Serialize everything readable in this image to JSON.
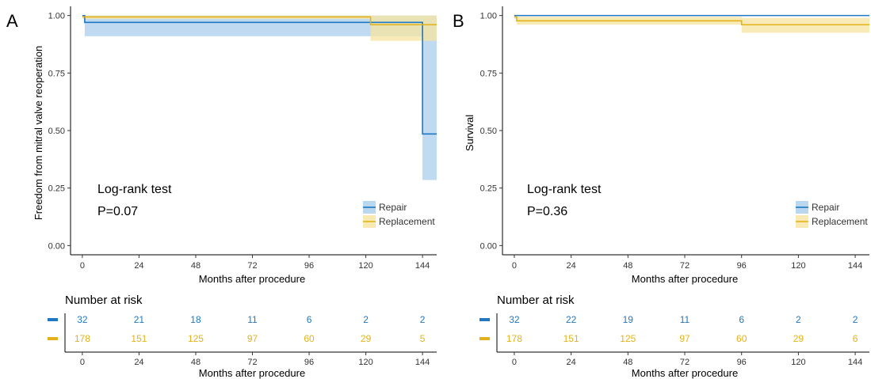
{
  "figure": {
    "panels": [
      {
        "letter": "A",
        "ylabel": "Freedom from mitral valve reoperation",
        "xlabel": "Months after procedure",
        "annotation_line1": "Log-rank test",
        "annotation_line2": "P=0.07",
        "risk_title": "Number at risk",
        "risk_xlabel": "Months after procedure"
      },
      {
        "letter": "B",
        "ylabel": "Survival",
        "xlabel": "Months after procedure",
        "annotation_line1": "Log-rank test",
        "annotation_line2": "P=0.36",
        "risk_title": "Number at risk",
        "risk_xlabel": "Months after procedure"
      }
    ]
  },
  "colors": {
    "repair": "#1f78c1",
    "repair_band": "#a9cdec",
    "replacement": "#e3b21a",
    "replacement_band": "#f7e4a0"
  },
  "chart_data": [
    {
      "type": "line",
      "subtype": "kaplan-meier",
      "xlabel": "Months after procedure",
      "ylabel": "Freedom from mitral valve reoperation",
      "xlim": [
        0,
        150
      ],
      "ylim": [
        0,
        1.0
      ],
      "xticks": [
        0,
        24,
        48,
        72,
        96,
        120,
        144
      ],
      "xtick_labels": [
        "0",
        "24",
        "48",
        "72",
        "96",
        "120",
        "144"
      ],
      "yticks": [
        0,
        0.25,
        0.5,
        0.75,
        1.0
      ],
      "ytick_labels": [
        "0.00",
        "0.25",
        "0.50",
        "0.75",
        "1.00"
      ],
      "legend_position": "bottom-right",
      "series": [
        {
          "name": "Repair",
          "color": "#1f78c1",
          "steps": [
            [
              0,
              1.0
            ],
            [
              1,
              0.97
            ],
            [
              144,
              0.485
            ],
            [
              150,
              0.485
            ]
          ],
          "ci_steps": [
            [
              0,
              1.0,
              1.0
            ],
            [
              1,
              0.91,
              1.0
            ],
            [
              144,
              0.285,
              1.0
            ],
            [
              150,
              0.285,
              1.0
            ]
          ]
        },
        {
          "name": "Replacement",
          "color": "#e3b21a",
          "steps": [
            [
              0,
              0.994
            ],
            [
              122,
              0.96
            ],
            [
              150,
              0.96
            ]
          ],
          "ci_steps": [
            [
              0,
              0.985,
              1.0
            ],
            [
              122,
              0.89,
              1.0
            ],
            [
              150,
              0.89,
              1.0
            ]
          ]
        }
      ],
      "risk_table": {
        "times": [
          "0",
          "24",
          "48",
          "72",
          "96",
          "120",
          "144"
        ],
        "rows": [
          {
            "name": "Repair",
            "values": [
              "32",
              "21",
              "18",
              "11",
              "6",
              "2",
              "2"
            ]
          },
          {
            "name": "Replacement",
            "values": [
              "178",
              "151",
              "125",
              "97",
              "60",
              "29",
              "5"
            ]
          }
        ]
      }
    },
    {
      "type": "line",
      "subtype": "kaplan-meier",
      "xlabel": "Months after procedure",
      "ylabel": "Survival",
      "xlim": [
        0,
        150
      ],
      "ylim": [
        0,
        1.0
      ],
      "xticks": [
        0,
        24,
        48,
        72,
        96,
        120,
        144
      ],
      "xtick_labels": [
        "0",
        "24",
        "48",
        "72",
        "96",
        "120",
        "144"
      ],
      "yticks": [
        0,
        0.25,
        0.5,
        0.75,
        1.0
      ],
      "ytick_labels": [
        "0.00",
        "0.25",
        "0.50",
        "0.75",
        "1.00"
      ],
      "legend_position": "bottom-right",
      "series": [
        {
          "name": "Repair",
          "color": "#1f78c1",
          "steps": [
            [
              0,
              1.0
            ],
            [
              150,
              1.0
            ]
          ],
          "ci_steps": [
            [
              0,
              1.0,
              1.0
            ],
            [
              150,
              1.0,
              1.0
            ]
          ]
        },
        {
          "name": "Replacement",
          "color": "#e3b21a",
          "steps": [
            [
              0,
              0.994
            ],
            [
              1,
              0.977
            ],
            [
              96,
              0.96
            ],
            [
              150,
              0.96
            ]
          ],
          "ci_steps": [
            [
              0,
              0.985,
              1.0
            ],
            [
              1,
              0.96,
              0.995
            ],
            [
              96,
              0.925,
              0.99
            ],
            [
              150,
              0.925,
              0.99
            ]
          ]
        }
      ],
      "risk_table": {
        "times": [
          "0",
          "24",
          "48",
          "72",
          "96",
          "120",
          "144"
        ],
        "rows": [
          {
            "name": "Repair",
            "values": [
              "32",
              "22",
              "19",
              "11",
              "6",
              "2",
              "2"
            ]
          },
          {
            "name": "Replacement",
            "values": [
              "178",
              "151",
              "125",
              "97",
              "60",
              "29",
              "6"
            ]
          }
        ]
      }
    }
  ]
}
